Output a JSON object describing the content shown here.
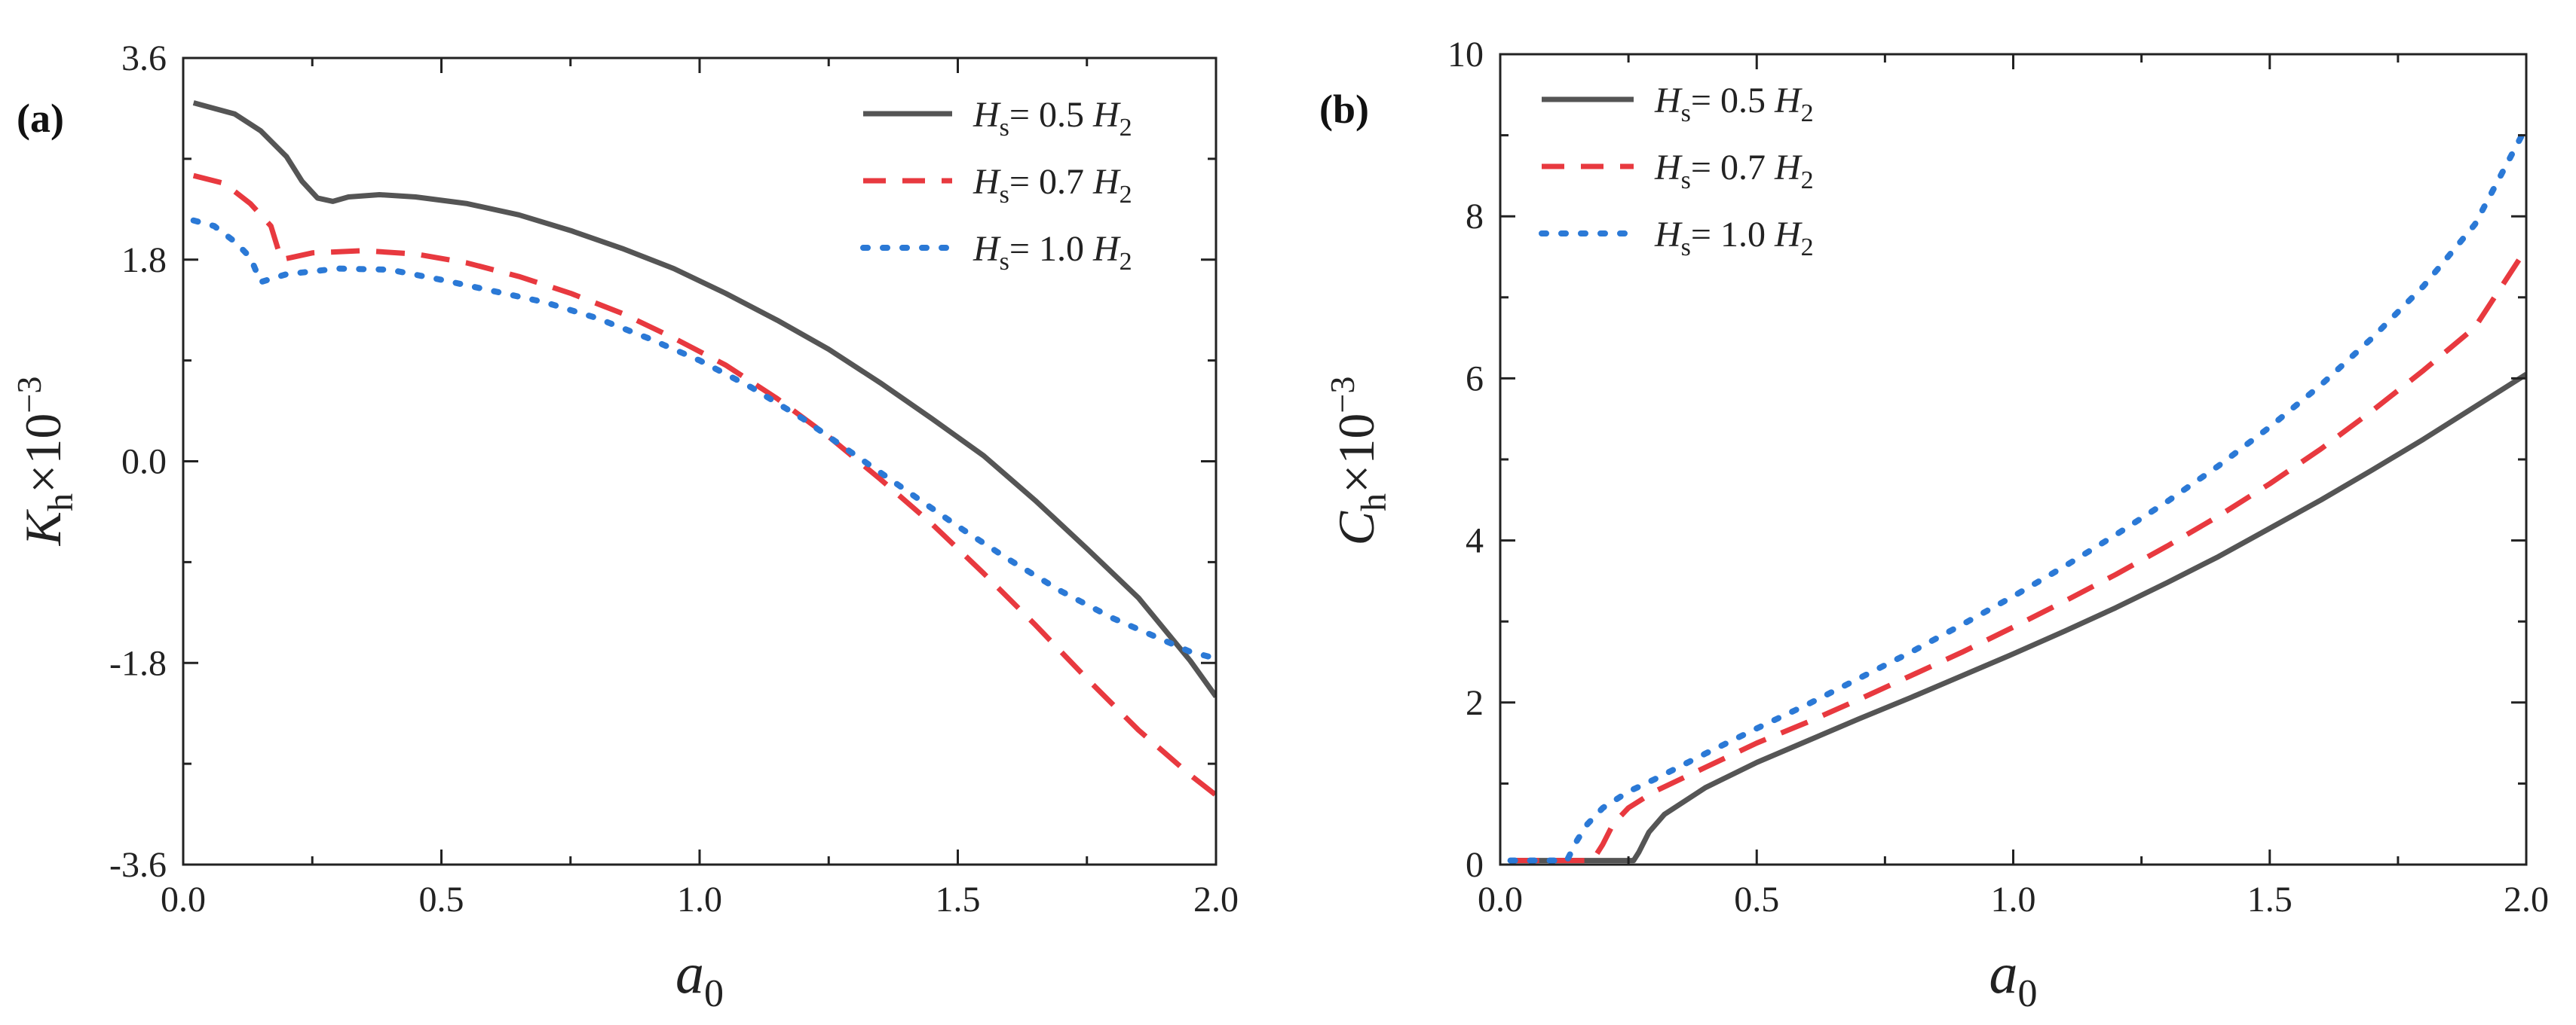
{
  "chart_data": [
    {
      "type": "line",
      "panel_label": "(a)",
      "xlabel": "a",
      "xlabel_sub": "0",
      "ylabel": "K",
      "ylabel_sub": "h",
      "ylabel_suffix": "×10",
      "ylabel_exp": "−3",
      "xlim": [
        0.0,
        2.0
      ],
      "ylim": [
        -3.6,
        3.6
      ],
      "xticks": [
        0.0,
        0.5,
        1.0,
        1.5,
        2.0
      ],
      "xtick_labels": [
        "0.0",
        "0.5",
        "1.0",
        "1.5",
        "2.0"
      ],
      "yticks": [
        -3.6,
        -1.8,
        0.0,
        1.8,
        3.6
      ],
      "ytick_labels": [
        "-3.6",
        "-1.8",
        "0.0",
        "1.8",
        "3.6"
      ],
      "legend_position": "top-right",
      "series": [
        {
          "name": "Hs= 0.5 H2",
          "label_main": "H",
          "label_sub": "s",
          "label_mid": "= 0.5 ",
          "label_h": "H",
          "label_h_sub": "2",
          "color": "#555555",
          "style": "solid",
          "x": [
            0.02,
            0.1,
            0.15,
            0.2,
            0.23,
            0.26,
            0.29,
            0.32,
            0.38,
            0.45,
            0.55,
            0.65,
            0.75,
            0.85,
            0.95,
            1.05,
            1.15,
            1.25,
            1.35,
            1.45,
            1.55,
            1.65,
            1.75,
            1.85,
            1.95,
            2.0
          ],
          "y": [
            3.2,
            3.1,
            2.95,
            2.72,
            2.5,
            2.35,
            2.32,
            2.36,
            2.38,
            2.36,
            2.3,
            2.2,
            2.06,
            1.9,
            1.72,
            1.5,
            1.26,
            1.0,
            0.7,
            0.38,
            0.05,
            -0.35,
            -0.78,
            -1.22,
            -1.78,
            -2.1
          ]
        },
        {
          "name": "Hs= 0.7 H2",
          "label_main": "H",
          "label_sub": "s",
          "label_mid": "= 0.7 ",
          "label_h": "H",
          "label_h_sub": "2",
          "color": "#e8393f",
          "style": "dashed",
          "x": [
            0.02,
            0.08,
            0.13,
            0.17,
            0.19,
            0.21,
            0.25,
            0.35,
            0.45,
            0.55,
            0.65,
            0.75,
            0.85,
            0.95,
            1.05,
            1.15,
            1.25,
            1.35,
            1.45,
            1.55,
            1.65,
            1.75,
            1.85,
            1.95,
            2.0
          ],
          "y": [
            2.55,
            2.48,
            2.3,
            2.1,
            1.8,
            1.82,
            1.86,
            1.88,
            1.85,
            1.77,
            1.65,
            1.5,
            1.32,
            1.1,
            0.86,
            0.56,
            0.22,
            -0.16,
            -0.56,
            -1.0,
            -1.46,
            -1.94,
            -2.4,
            -2.8,
            -2.98
          ]
        },
        {
          "name": "Hs= 1.0 H2",
          "label_main": "H",
          "label_sub": "s",
          "label_mid": "= 1.0 ",
          "label_h": "H",
          "label_h_sub": "2",
          "color": "#2b79d6",
          "style": "dotted",
          "x": [
            0.02,
            0.06,
            0.1,
            0.13,
            0.15,
            0.2,
            0.3,
            0.4,
            0.5,
            0.6,
            0.7,
            0.8,
            0.9,
            1.0,
            1.1,
            1.2,
            1.3,
            1.4,
            1.5,
            1.6,
            1.7,
            1.8,
            1.9,
            1.95,
            2.0
          ],
          "y": [
            2.15,
            2.1,
            1.96,
            1.82,
            1.6,
            1.67,
            1.72,
            1.71,
            1.62,
            1.52,
            1.42,
            1.28,
            1.1,
            0.9,
            0.66,
            0.38,
            0.06,
            -0.26,
            -0.58,
            -0.88,
            -1.16,
            -1.4,
            -1.6,
            -1.7,
            -1.76
          ]
        }
      ]
    },
    {
      "type": "line",
      "panel_label": "(b)",
      "xlabel": "a",
      "xlabel_sub": "0",
      "ylabel": "C",
      "ylabel_sub": "h",
      "ylabel_suffix": "×10",
      "ylabel_exp": "−3",
      "xlim": [
        0.0,
        2.0
      ],
      "ylim": [
        0,
        10
      ],
      "xticks": [
        0.0,
        0.5,
        1.0,
        1.5,
        2.0
      ],
      "xtick_labels": [
        "0.0",
        "0.5",
        "1.0",
        "1.5",
        "2.0"
      ],
      "yticks": [
        0,
        2,
        4,
        6,
        8,
        10
      ],
      "ytick_labels": [
        "0",
        "2",
        "4",
        "6",
        "8",
        "10"
      ],
      "legend_position": "top-left",
      "series": [
        {
          "name": "Hs= 0.5 H2",
          "label_main": "H",
          "label_sub": "s",
          "label_mid": "= 0.5 ",
          "label_h": "H",
          "label_h_sub": "2",
          "color": "#555555",
          "style": "solid",
          "x": [
            0.02,
            0.1,
            0.2,
            0.26,
            0.27,
            0.29,
            0.32,
            0.4,
            0.5,
            0.6,
            0.7,
            0.8,
            0.9,
            1.0,
            1.1,
            1.2,
            1.3,
            1.4,
            1.5,
            1.6,
            1.7,
            1.8,
            1.9,
            2.0
          ],
          "y": [
            0.05,
            0.05,
            0.05,
            0.05,
            0.15,
            0.4,
            0.62,
            0.95,
            1.26,
            1.53,
            1.8,
            2.06,
            2.33,
            2.6,
            2.88,
            3.17,
            3.48,
            3.8,
            4.15,
            4.5,
            4.87,
            5.25,
            5.65,
            6.05
          ]
        },
        {
          "name": "Hs= 0.7 H2",
          "label_main": "H",
          "label_sub": "s",
          "label_mid": "= 0.7 ",
          "label_h": "H",
          "label_h_sub": "2",
          "color": "#e8393f",
          "style": "dashed",
          "x": [
            0.02,
            0.1,
            0.18,
            0.2,
            0.22,
            0.25,
            0.3,
            0.4,
            0.5,
            0.6,
            0.7,
            0.8,
            0.9,
            1.0,
            1.1,
            1.2,
            1.3,
            1.4,
            1.5,
            1.6,
            1.7,
            1.8,
            1.9,
            2.0
          ],
          "y": [
            0.05,
            0.05,
            0.05,
            0.25,
            0.5,
            0.7,
            0.9,
            1.2,
            1.5,
            1.76,
            2.04,
            2.33,
            2.62,
            2.93,
            3.25,
            3.58,
            3.93,
            4.3,
            4.7,
            5.13,
            5.6,
            6.1,
            6.63,
            7.6
          ]
        },
        {
          "name": "Hs= 1.0 H2",
          "label_main": "H",
          "label_sub": "s",
          "label_mid": "= 1.0 ",
          "label_h": "H",
          "label_h_sub": "2",
          "color": "#2b79d6",
          "style": "dotted",
          "x": [
            0.02,
            0.08,
            0.13,
            0.15,
            0.17,
            0.2,
            0.25,
            0.3,
            0.4,
            0.5,
            0.6,
            0.7,
            0.8,
            0.9,
            1.0,
            1.1,
            1.2,
            1.3,
            1.4,
            1.5,
            1.6,
            1.7,
            1.8,
            1.9,
            2.0
          ],
          "y": [
            0.05,
            0.05,
            0.05,
            0.3,
            0.5,
            0.7,
            0.9,
            1.05,
            1.37,
            1.68,
            1.98,
            2.3,
            2.62,
            2.96,
            3.31,
            3.68,
            4.07,
            4.48,
            4.92,
            5.4,
            5.92,
            6.5,
            7.14,
            7.9,
            9.1
          ]
        }
      ]
    }
  ]
}
